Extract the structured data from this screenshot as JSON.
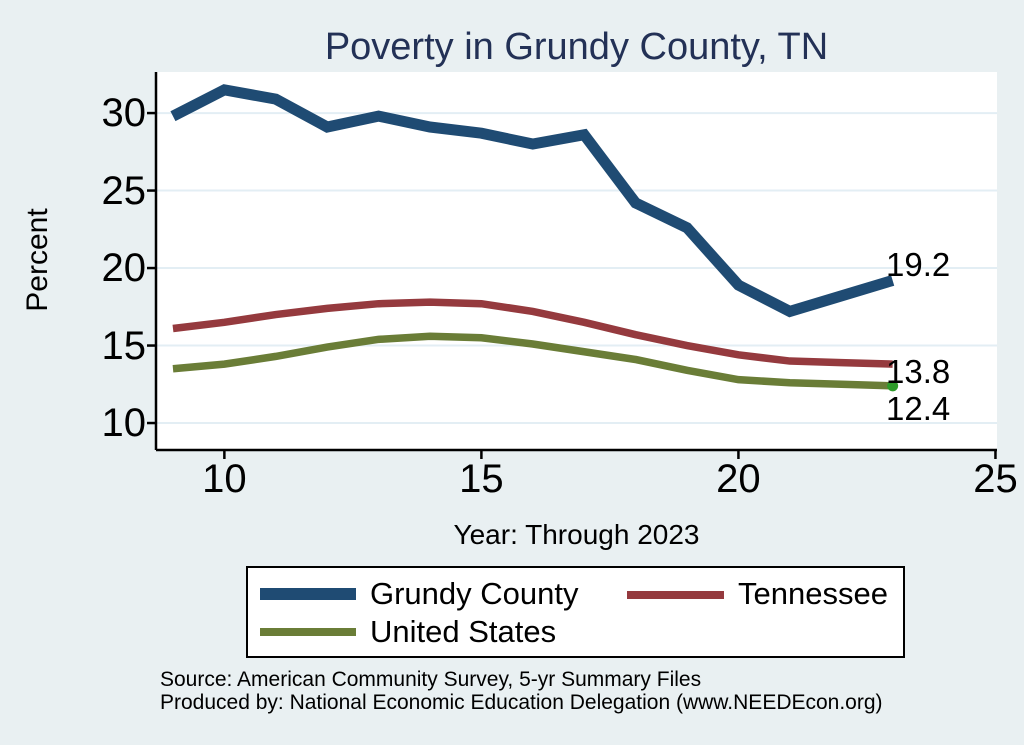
{
  "title": "Poverty in Grundy County, TN",
  "colors": {
    "background": "#e9f0f2",
    "plot_background": "#ffffff",
    "title_text": "#233156",
    "axis": "#000000",
    "gridline": "#e3eef4",
    "end_marker_green": "#2e9b2a"
  },
  "chart_data": {
    "type": "line",
    "title": "Poverty in Grundy County, TN",
    "xlabel": "Year: Through 2023",
    "ylabel": "Percent",
    "x": [
      2009,
      2010,
      2011,
      2012,
      2013,
      2014,
      2015,
      2016,
      2017,
      2018,
      2019,
      2020,
      2021,
      2022,
      2023
    ],
    "series": [
      {
        "name": "Grundy County",
        "color": "#1f4b73",
        "line_width": 11,
        "values": [
          29.8,
          31.5,
          30.9,
          29.1,
          29.8,
          29.1,
          28.7,
          28.0,
          28.6,
          24.2,
          22.6,
          18.9,
          17.2,
          18.2,
          19.2
        ],
        "end_label": "19.2",
        "end_marker": false
      },
      {
        "name": "Tennessee",
        "color": "#953a3e",
        "line_width": 7.5,
        "values": [
          16.1,
          16.5,
          17.0,
          17.4,
          17.7,
          17.8,
          17.7,
          17.2,
          16.5,
          15.7,
          15.0,
          14.4,
          14.0,
          13.9,
          13.8
        ],
        "end_label": "13.8",
        "end_marker": false
      },
      {
        "name": "United States",
        "color": "#6a7d37",
        "line_width": 7.5,
        "values": [
          13.5,
          13.8,
          14.3,
          14.9,
          15.4,
          15.6,
          15.5,
          15.1,
          14.6,
          14.1,
          13.4,
          12.8,
          12.6,
          12.5,
          12.4
        ],
        "end_label": "12.4",
        "end_marker": true
      }
    ],
    "xticks": {
      "values": [
        2010,
        2015,
        2020,
        2025
      ],
      "labels": [
        "10",
        "15",
        "20",
        "25"
      ]
    },
    "yticks": {
      "values": [
        10,
        15,
        20,
        25,
        30
      ],
      "labels": [
        "10",
        "15",
        "20",
        "25",
        "30"
      ]
    },
    "xlim": [
      2008.67,
      2025.03
    ],
    "ylim": [
      8.26,
      32.65
    ],
    "grid": "horizontal",
    "legend_position": "bottom"
  },
  "footer": {
    "source_line": "Source: American Community Survey, 5-yr Summary Files",
    "produced_line": "Produced by: National Economic Education Delegation (www.NEEDEcon.org)"
  }
}
